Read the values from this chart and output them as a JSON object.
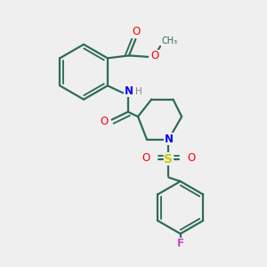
{
  "bg_color": "#efefef",
  "bond_color": "#2d6b5a",
  "bond_lw": 1.6,
  "atom_colors": {
    "O": "#ff0000",
    "N": "#0000ff",
    "S": "#cccc00",
    "F": "#cc44cc",
    "H": "#888888",
    "C": "#2d6b5a"
  },
  "figsize": [
    3.0,
    3.0
  ],
  "dpi": 100
}
